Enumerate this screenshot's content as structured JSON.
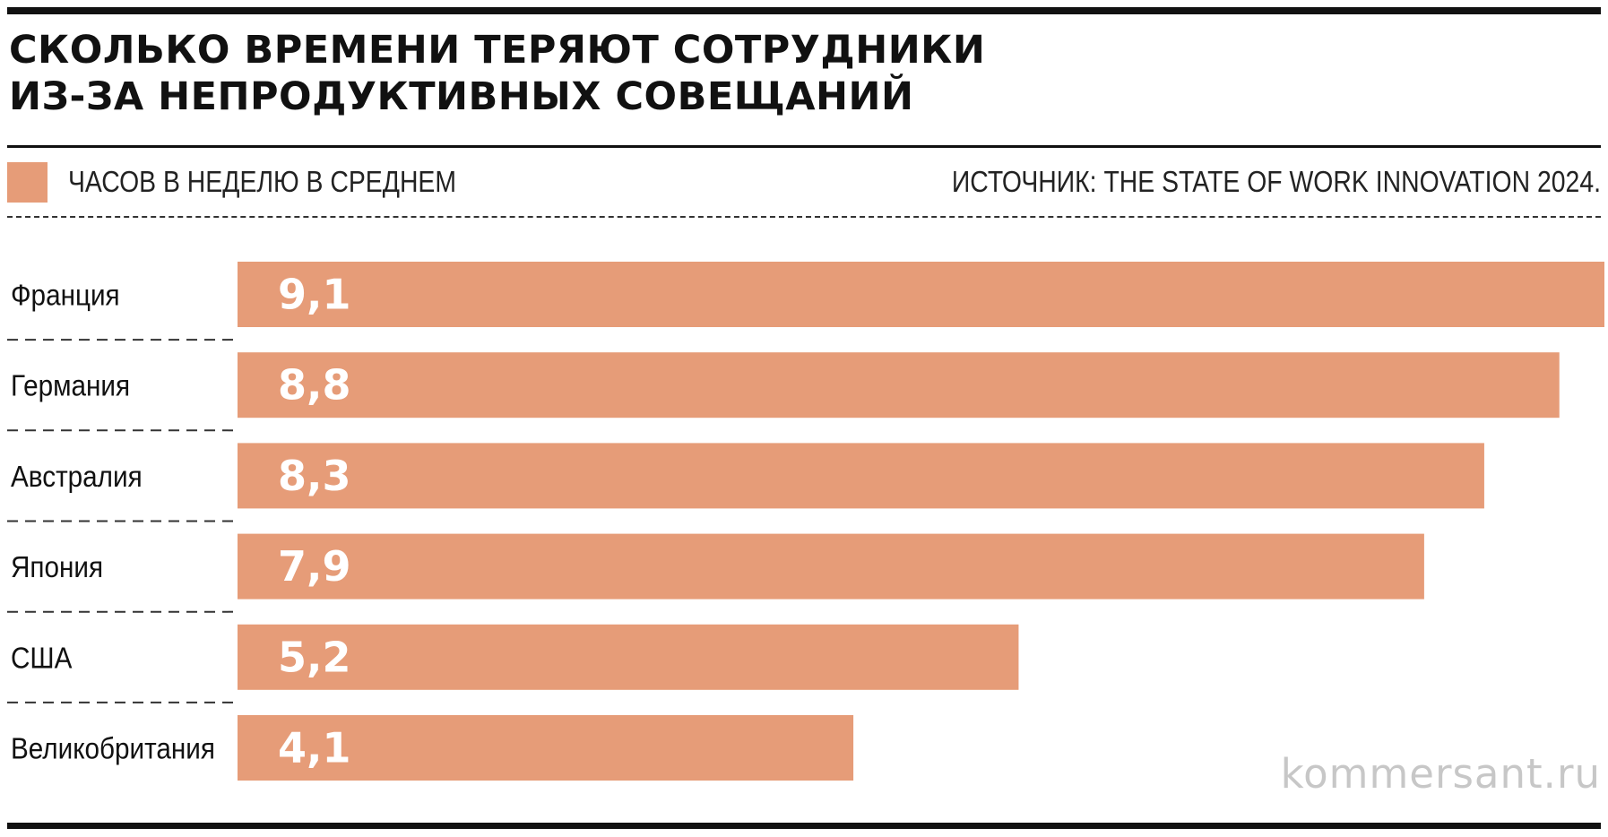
{
  "header": {
    "title_line1": "Сколько времени теряют сотрудники",
    "title_line2": "из-за непродуктивных совещаний"
  },
  "legend": {
    "label": "ЧАСОВ В НЕДЕЛЮ В СРЕДНЕМ",
    "color": "#e69c78"
  },
  "source": "ИСТОЧНИК: THE STATE OF WORK INNOVATION 2024.",
  "watermark": "kommersant.ru",
  "colors": {
    "bar": "#e69c78",
    "bar_label": "#ffffff",
    "text": "#111111"
  },
  "chart_data": {
    "type": "bar",
    "orientation": "horizontal",
    "categories": [
      "Франция",
      "Германия",
      "Австралия",
      "Япония",
      "США",
      "Великобритания"
    ],
    "values": [
      9.1,
      8.8,
      8.3,
      7.9,
      5.2,
      4.1
    ],
    "value_labels": [
      "9,1",
      "8,8",
      "8,3",
      "7,9",
      "5,2",
      "4,1"
    ],
    "xlim": [
      0,
      9.1
    ],
    "grid": false,
    "legend_position": "top-left"
  }
}
